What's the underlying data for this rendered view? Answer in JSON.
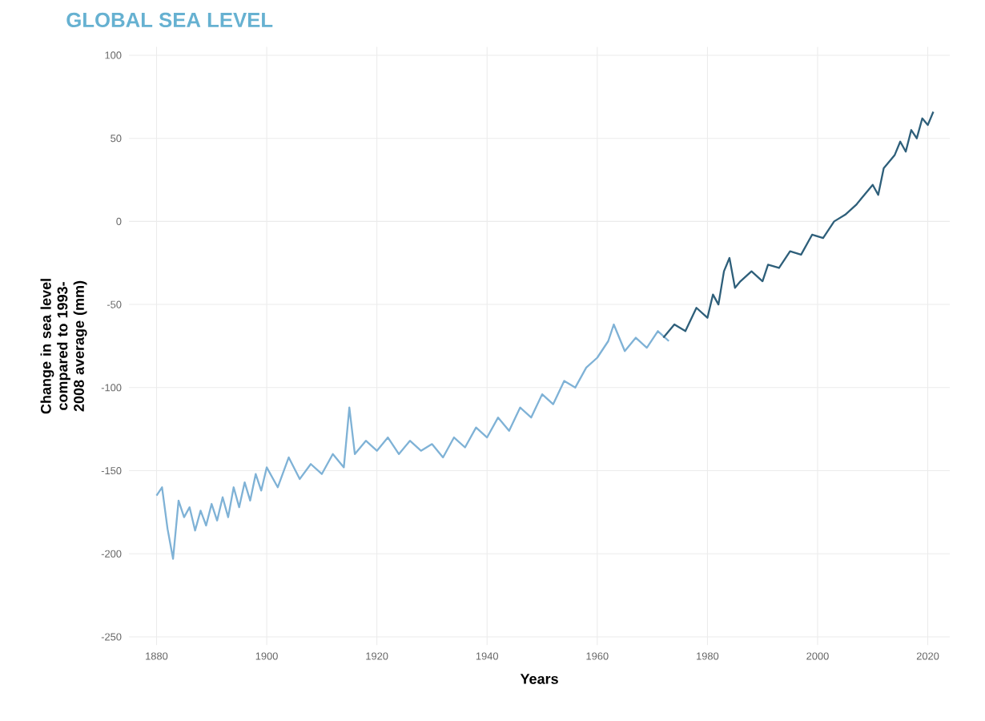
{
  "chart_data": {
    "type": "line",
    "title": "GLOBAL SEA LEVEL",
    "xlabel": "Years",
    "ylabel": "Change in sea level compared to 1993-2008 average (mm)",
    "xlim": [
      1875,
      2024
    ],
    "ylim": [
      -255,
      105
    ],
    "xticks": [
      1880,
      1900,
      1920,
      1940,
      1960,
      1980,
      2000,
      2020
    ],
    "yticks": [
      -250,
      -200,
      -150,
      -100,
      -50,
      0,
      50,
      100
    ],
    "grid": true,
    "series": [
      {
        "color": "#7fb2d6",
        "x": [
          1880,
          1881,
          1882,
          1883,
          1884,
          1885,
          1886,
          1887,
          1888,
          1889,
          1890,
          1891,
          1892,
          1893,
          1894,
          1895,
          1896,
          1897,
          1898,
          1899,
          1900,
          1902,
          1904,
          1906,
          1908,
          1910,
          1912,
          1914,
          1915,
          1916,
          1918,
          1920,
          1922,
          1924,
          1926,
          1928,
          1930,
          1932,
          1934,
          1936,
          1938,
          1940,
          1942,
          1944,
          1946,
          1948,
          1950,
          1952,
          1954,
          1956,
          1958,
          1960,
          1962,
          1963,
          1965,
          1967,
          1969,
          1971,
          1973
        ],
        "values": [
          -165,
          -160,
          -185,
          -203,
          -168,
          -178,
          -172,
          -186,
          -174,
          -183,
          -170,
          -180,
          -166,
          -178,
          -160,
          -172,
          -157,
          -168,
          -152,
          -162,
          -148,
          -160,
          -142,
          -155,
          -146,
          -152,
          -140,
          -148,
          -112,
          -140,
          -132,
          -138,
          -130,
          -140,
          -132,
          -138,
          -134,
          -142,
          -130,
          -136,
          -124,
          -130,
          -118,
          -126,
          -112,
          -118,
          -104,
          -110,
          -96,
          -100,
          -88,
          -82,
          -72,
          -62,
          -78,
          -70,
          -76,
          -66,
          -72
        ]
      },
      {
        "color": "#2e5f7a",
        "x": [
          1972,
          1974,
          1976,
          1978,
          1980,
          1981,
          1982,
          1983,
          1984,
          1985,
          1986,
          1988,
          1990,
          1991,
          1993,
          1995,
          1997,
          1999,
          2001,
          2003,
          2005,
          2007,
          2008,
          2010,
          2011,
          2012,
          2014,
          2015,
          2016,
          2017,
          2018,
          2019,
          2020,
          2021
        ],
        "values": [
          -70,
          -62,
          -66,
          -52,
          -58,
          -44,
          -50,
          -30,
          -22,
          -40,
          -36,
          -30,
          -36,
          -26,
          -28,
          -18,
          -20,
          -8,
          -10,
          0,
          4,
          10,
          14,
          22,
          16,
          32,
          40,
          48,
          42,
          55,
          50,
          62,
          58,
          66
        ]
      }
    ]
  }
}
